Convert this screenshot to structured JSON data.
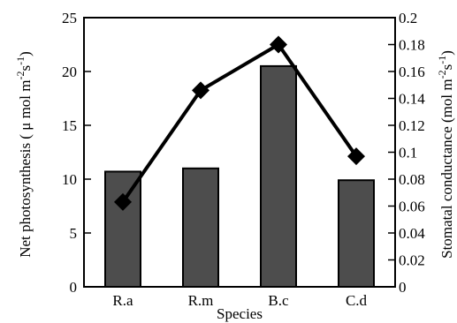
{
  "chart_data": {
    "type": "bar+line",
    "categories": [
      "R.a",
      "R.m",
      "B.c",
      "C.d"
    ],
    "xlabel": "Species",
    "y_left": {
      "label_main": "Net photosynthesis ( μ mol m",
      "label_sup1": "-2",
      "label_mid": "s",
      "label_sup2": "-1",
      "label_end": ")",
      "lim": [
        0,
        25
      ],
      "ticks": [
        "0",
        "5",
        "10",
        "15",
        "20",
        "25"
      ]
    },
    "y_right": {
      "label_main": "Stomatal conductance (mol m",
      "label_sup1": "-2",
      "label_mid": "s",
      "label_sup2": "-1",
      "label_end": ")",
      "lim": [
        0,
        0.2
      ],
      "ticks": [
        "0",
        "0.02",
        "0.04",
        "0.06",
        "0.08",
        "0.1",
        "0.12",
        "0.14",
        "0.16",
        "0.18",
        "0.2"
      ]
    },
    "series": [
      {
        "type": "bar",
        "axis": "left",
        "values": [
          10.7,
          11.0,
          20.5,
          9.9
        ]
      },
      {
        "type": "line",
        "axis": "right",
        "marker": "diamond",
        "values": [
          0.063,
          0.146,
          0.18,
          0.097
        ]
      }
    ],
    "colors": {
      "bar_fill": "#4d4d4d",
      "bar_stroke": "#000000",
      "line": "#000000"
    },
    "grid": false,
    "legend": "none"
  }
}
